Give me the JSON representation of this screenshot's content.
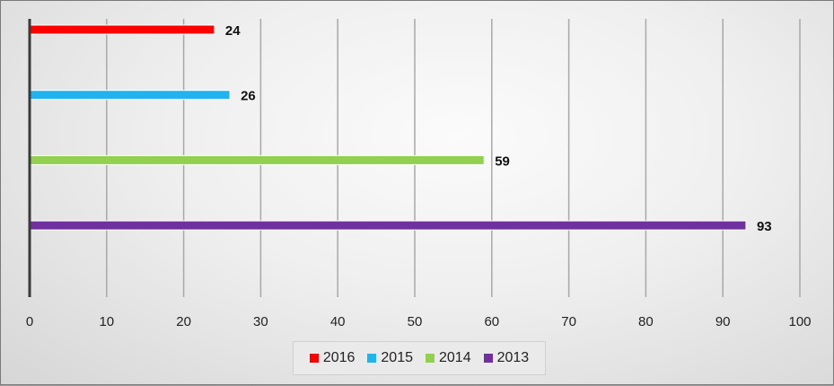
{
  "chart_data": {
    "type": "bar",
    "orientation": "horizontal",
    "categories": [
      "2016",
      "2015",
      "2014",
      "2013"
    ],
    "values": [
      24,
      26,
      59,
      93
    ],
    "colors": [
      "#ff0000",
      "#1fb4f0",
      "#92d050",
      "#7030a0"
    ],
    "xlim": [
      0,
      100
    ],
    "xticks": [
      0,
      10,
      20,
      30,
      40,
      50,
      60,
      70,
      80,
      90,
      100
    ],
    "grid": true,
    "legend_position": "bottom",
    "data_labels": [
      "24",
      "26",
      "59",
      "93"
    ]
  }
}
